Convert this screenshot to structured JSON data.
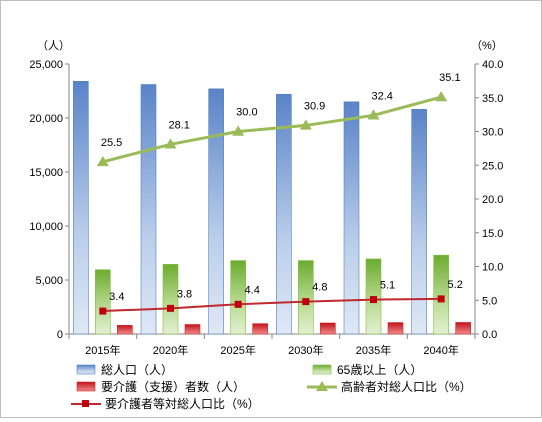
{
  "chart_data": {
    "type": "bar",
    "categories": [
      "2015年",
      "2020年",
      "2025年",
      "2030年",
      "2035年",
      "2040年"
    ],
    "y_left": {
      "unit": "（人）",
      "ylim": [
        0,
        25000
      ],
      "ticks": [
        "0",
        "5,000",
        "10,000",
        "15,000",
        "20,000",
        "25,000"
      ]
    },
    "y_right": {
      "unit": "（%）",
      "ylim": [
        0,
        40
      ],
      "ticks": [
        "0.0",
        "5.0",
        "10.0",
        "15.0",
        "20.0",
        "25.0",
        "30.0",
        "35.0",
        "40.0"
      ]
    },
    "series": [
      {
        "name": "総人口（人）",
        "kind": "bar",
        "axis": "left",
        "color": "#4f81bd",
        "values": [
          23400,
          23100,
          22700,
          22200,
          21500,
          20800
        ]
      },
      {
        "name": "65歳以上（人）",
        "kind": "bar",
        "axis": "left",
        "color": "#7fbf3f",
        "values": [
          5950,
          6450,
          6800,
          6800,
          6950,
          7300
        ]
      },
      {
        "name": "要介護（支援）者数（人）",
        "kind": "bar",
        "axis": "left",
        "color": "#d9252a",
        "values": [
          800,
          880,
          960,
          1020,
          1060,
          1070
        ]
      },
      {
        "name": "高齢者対総人口比（%）",
        "kind": "line",
        "axis": "right",
        "color": "#9bbb59",
        "values": [
          25.5,
          28.1,
          30.0,
          30.9,
          32.4,
          35.1
        ],
        "labels": [
          "25.5",
          "28.1",
          "30.0",
          "30.9",
          "32.4",
          "35.1"
        ]
      },
      {
        "name": "要介護者等対総人口比（%）",
        "kind": "line",
        "axis": "right",
        "color": "#c0282d",
        "marker_color": "#c0000e",
        "values": [
          3.4,
          3.8,
          4.4,
          4.8,
          5.1,
          5.2
        ],
        "labels": [
          "3.4",
          "3.8",
          "4.4",
          "4.8",
          "5.1",
          "5.2"
        ]
      }
    ],
    "legend_placement": "bottom",
    "grid": false
  }
}
